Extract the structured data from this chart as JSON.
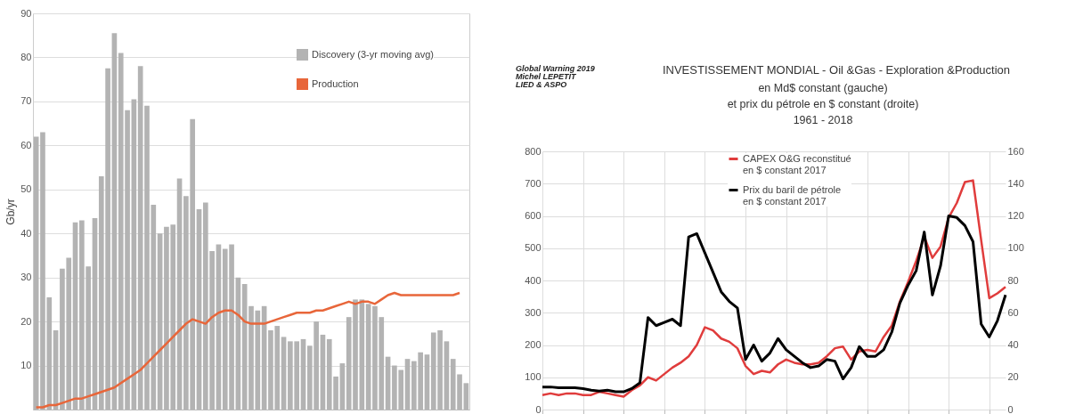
{
  "chart_data": [
    {
      "type": "bar",
      "ylabel": "Gb/yr",
      "categories": [
        null,
        null,
        null,
        null,
        null,
        null,
        null,
        null,
        null,
        null,
        null,
        null,
        null,
        null,
        null,
        null,
        null,
        null,
        null,
        null,
        null,
        null,
        null,
        null,
        null,
        null,
        null,
        null,
        null,
        null,
        null,
        null,
        null,
        null,
        null,
        null,
        null,
        null,
        null,
        null,
        null,
        null,
        null,
        null,
        null,
        null,
        null,
        null,
        null,
        null,
        null,
        null,
        null,
        null,
        null,
        null,
        null,
        null,
        null,
        null,
        null,
        null,
        null,
        null,
        null,
        null,
        null
      ],
      "series": [
        {
          "name": "Discovery (3-yr moving avg)",
          "type": "bar",
          "color": "#b3b3b3",
          "values": [
            62,
            63,
            25.5,
            18,
            32,
            34.5,
            42.5,
            43,
            32.5,
            43.5,
            53,
            77.5,
            85.5,
            81,
            68,
            70.5,
            78,
            69,
            46.5,
            40,
            41.5,
            42,
            52.5,
            48.5,
            66,
            45.5,
            47,
            36,
            37.5,
            36.5,
            37.5,
            30,
            28.5,
            23.5,
            22.5,
            23.5,
            18,
            19,
            16.5,
            15.5,
            15.5,
            16,
            14.5,
            20,
            17,
            16,
            7.5,
            10.5,
            21,
            25,
            25,
            24,
            23.5,
            21,
            12,
            10,
            9,
            11.5,
            11,
            13,
            12.5,
            17.5,
            18,
            15.5,
            11.5,
            8,
            6
          ]
        },
        {
          "name": "Production",
          "type": "line",
          "color": "#e8663a",
          "values": [
            0.5,
            0.5,
            1,
            1,
            1.5,
            2,
            2.5,
            2.5,
            3,
            3.5,
            4,
            4.5,
            5,
            6,
            7,
            8,
            9,
            10.5,
            12,
            13.5,
            15,
            16.5,
            18,
            19.5,
            20.5,
            20,
            19.5,
            21,
            22,
            22.5,
            22.5,
            21.5,
            20,
            19.5,
            19.5,
            19.5,
            20,
            20.5,
            21,
            21.5,
            22,
            22,
            22,
            22.5,
            22.5,
            23,
            23.5,
            24,
            24.5,
            24,
            24.5,
            24.5,
            24,
            25,
            26,
            26.5,
            26,
            26,
            26,
            26,
            26,
            26,
            26,
            26,
            26,
            26.5,
            null
          ]
        }
      ],
      "ylim": [
        0,
        90
      ],
      "yticks": [
        10,
        20,
        30,
        40,
        50,
        60,
        70,
        80,
        90
      ],
      "grid": "y",
      "legend": "top right"
    },
    {
      "type": "line",
      "title": "INVESTISSEMENT  MONDIAL - Oil &Gas - Exploration &Production",
      "subtitle": "en Md$ constant (gauche)\net prix du pétrole en $ constant (droite)\n1961 - 2018",
      "annotations": [
        "Global Warning 2019\nMichel LEPETIT\nLIED & ASPO"
      ],
      "categories": [
        null,
        null,
        null,
        null,
        null,
        null,
        null,
        null,
        null,
        null,
        null,
        null,
        null,
        null,
        null,
        null,
        null,
        null,
        null,
        null,
        null,
        null,
        null,
        null,
        null,
        null,
        null,
        null,
        null,
        null,
        null,
        null,
        null,
        null,
        null,
        null,
        null,
        null,
        null,
        null,
        null,
        null,
        null,
        null,
        null,
        null,
        null,
        null,
        null,
        null,
        null,
        null,
        null,
        null,
        null,
        null,
        null,
        null
      ],
      "series": [
        {
          "name": "CAPEX O&G reconstitué\nen $ constant 2017",
          "color": "#e03c3c",
          "values": [
            45,
            50,
            45,
            50,
            50,
            45,
            45,
            55,
            50,
            45,
            40,
            60,
            75,
            100,
            90,
            110,
            130,
            145,
            165,
            200,
            255,
            245,
            220,
            210,
            190,
            135,
            110,
            120,
            115,
            140,
            155,
            145,
            140,
            140,
            145,
            165,
            190,
            195,
            155,
            180,
            185,
            180,
            225,
            260,
            335,
            395,
            460,
            535,
            470,
            505,
            595,
            640,
            705,
            710,
            525,
            345,
            360,
            380
          ]
        },
        {
          "name": "Prix du baril de pétrole\nen $ constant 2017",
          "color": "#000000",
          "axis": "y2",
          "values": [
            14,
            14,
            13.5,
            13.5,
            13.5,
            13,
            12,
            11.5,
            12,
            11,
            11,
            13,
            16.5,
            57,
            52,
            54,
            56,
            52,
            107,
            109,
            97,
            85,
            73,
            67,
            63,
            31,
            40,
            30,
            35,
            44,
            37,
            33,
            29,
            26,
            27,
            31,
            30,
            19,
            26,
            39,
            33,
            33,
            37,
            48,
            66,
            77,
            86,
            110,
            71,
            89,
            120,
            119,
            114,
            104,
            53,
            45,
            55,
            71
          ]
        }
      ],
      "ylim": [
        0,
        800
      ],
      "yticks": [
        0,
        100,
        200,
        300,
        400,
        500,
        600,
        700,
        800
      ],
      "y2lim": [
        0,
        160
      ],
      "y2ticks": [
        0,
        20,
        40,
        60,
        80,
        100,
        120,
        140,
        160
      ],
      "grid": true,
      "legend": "top"
    }
  ]
}
